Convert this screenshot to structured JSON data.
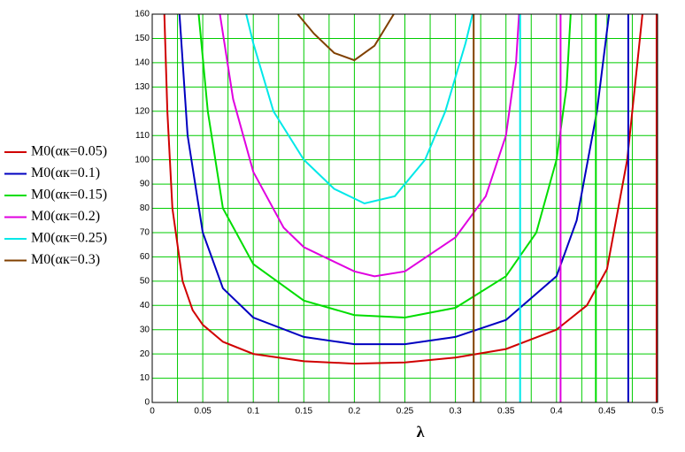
{
  "chart_data": {
    "type": "line",
    "x_label": "λ",
    "xlim": [
      0,
      0.5
    ],
    "ylim": [
      0,
      160
    ],
    "xticks": [
      0,
      0.05,
      0.1,
      0.15,
      0.2,
      0.25,
      0.3,
      0.35,
      0.4,
      0.45,
      0.5
    ],
    "xgrid": [
      0.025,
      0.075,
      0.125,
      0.175,
      0.225,
      0.275,
      0.325,
      0.375,
      0.425,
      0.475
    ],
    "yticks": [
      0,
      10,
      20,
      30,
      40,
      50,
      60,
      70,
      80,
      90,
      100,
      110,
      120,
      130,
      140,
      150,
      160
    ],
    "grid": true,
    "grid_color": "#00cc00",
    "series": [
      {
        "name": "M0(αк=0.05)",
        "color": "#d00000",
        "x": [
          0.012,
          0.015,
          0.02,
          0.03,
          0.04,
          0.05,
          0.07,
          0.1,
          0.15,
          0.2,
          0.25,
          0.3,
          0.35,
          0.4,
          0.43,
          0.45,
          0.47,
          0.48,
          0.485,
          null,
          0.499,
          0.499
        ],
        "values": [
          160,
          120,
          80,
          50,
          38,
          32,
          25,
          20,
          17,
          16,
          16.5,
          18.5,
          22,
          30,
          40,
          55,
          100,
          140,
          160,
          null,
          160,
          0
        ]
      },
      {
        "name": "M0(αк=0.1)",
        "color": "#0000c0",
        "x": [
          0.027,
          0.035,
          0.05,
          0.07,
          0.1,
          0.15,
          0.2,
          0.25,
          0.3,
          0.35,
          0.4,
          0.42,
          0.44,
          0.452,
          null,
          0.471,
          0.471
        ],
        "values": [
          160,
          110,
          70,
          47,
          35,
          27,
          24,
          24,
          27,
          34,
          52,
          75,
          120,
          160,
          null,
          160,
          0
        ]
      },
      {
        "name": "M0(αк=0.15)",
        "color": "#00dd00",
        "x": [
          0.046,
          0.055,
          0.07,
          0.1,
          0.15,
          0.2,
          0.25,
          0.3,
          0.35,
          0.38,
          0.4,
          0.41,
          0.414,
          null,
          0.439,
          0.439
        ],
        "values": [
          160,
          120,
          80,
          57,
          42,
          36,
          35,
          39,
          52,
          70,
          100,
          130,
          160,
          null,
          160,
          0
        ]
      },
      {
        "name": "M0(αк=0.2)",
        "color": "#e000e0",
        "x": [
          0.067,
          0.08,
          0.1,
          0.13,
          0.15,
          0.2,
          0.22,
          0.25,
          0.3,
          0.33,
          0.35,
          0.36,
          0.363,
          null,
          0.404,
          0.404
        ],
        "values": [
          160,
          125,
          95,
          72,
          64,
          54,
          52,
          54,
          68,
          85,
          110,
          140,
          160,
          null,
          160,
          0
        ]
      },
      {
        "name": "M0(αк=0.25)",
        "color": "#00e8e8",
        "x": [
          0.093,
          0.1,
          0.12,
          0.15,
          0.18,
          0.21,
          0.24,
          0.27,
          0.29,
          0.31,
          0.317,
          null,
          0.364,
          0.364
        ],
        "values": [
          160,
          148,
          120,
          100,
          88,
          82,
          85,
          100,
          120,
          148,
          160,
          null,
          160,
          0
        ]
      },
      {
        "name": "M0(αк=0.3)",
        "color": "#804000",
        "x": [
          0.144,
          0.16,
          0.18,
          0.2,
          0.22,
          0.239,
          null,
          0.318,
          0.318
        ],
        "values": [
          160,
          152,
          144,
          141,
          147,
          160,
          null,
          160,
          0
        ]
      }
    ]
  }
}
